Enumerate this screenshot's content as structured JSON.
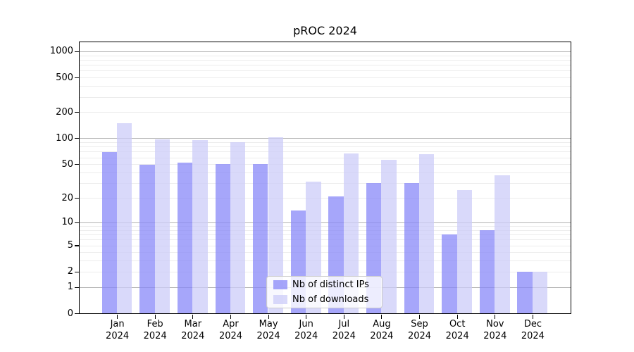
{
  "chart_data": {
    "type": "bar",
    "title": "pROC 2024",
    "categories": [
      "Jan",
      "Feb",
      "Mar",
      "Apr",
      "May",
      "Jun",
      "Jul",
      "Aug",
      "Sep",
      "Oct",
      "Nov",
      "Dec"
    ],
    "category_year": "2024",
    "series": [
      {
        "name": "Nb of distinct IPs",
        "key": "distinct-ips",
        "color": "rgba(136,136,248,0.75)",
        "values": [
          69,
          49,
          52,
          50,
          50,
          14,
          21,
          30,
          30,
          7,
          8,
          2
        ]
      },
      {
        "name": "Nb of downloads",
        "key": "downloads",
        "color": "rgba(204,204,248,0.75)",
        "values": [
          150,
          98,
          95,
          90,
          102,
          31,
          67,
          56,
          66,
          25,
          37,
          2
        ]
      }
    ],
    "yscale": "log1p",
    "ylim": [
      0,
      1270
    ],
    "yticks_labeled": [
      0,
      1,
      2,
      5,
      10,
      20,
      50,
      100,
      200,
      500,
      1000
    ],
    "gridlines_major": [
      1,
      10,
      100,
      1000
    ],
    "gridlines_minor": [
      2,
      3,
      4,
      5,
      6,
      7,
      8,
      9,
      20,
      30,
      40,
      50,
      60,
      70,
      80,
      90,
      200,
      300,
      400,
      500,
      600,
      700,
      800,
      900
    ],
    "grid_color_major": "#b3b3b3",
    "grid_color_minor": "#ececec",
    "legend_position": "lower-center",
    "grid": "on"
  }
}
